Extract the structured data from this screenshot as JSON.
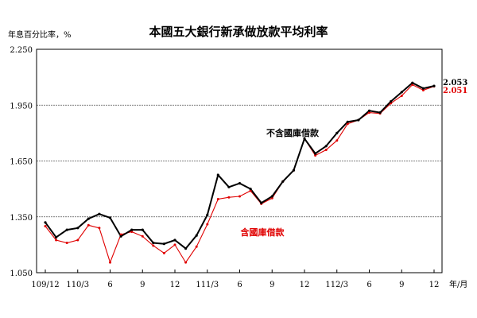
{
  "chart_data": {
    "type": "line",
    "title": "本國五大銀行新承做放款平均利率",
    "ylabel": "年息百分比率，%",
    "xlabel": "年/月",
    "ylim": [
      1.05,
      2.25
    ],
    "yticks": [
      "1.050",
      "1.350",
      "1.650",
      "1.950",
      "2.250"
    ],
    "grid": "horizontal dashed at y ticks",
    "x": [
      "109/12",
      "110/1",
      "110/2",
      "110/3",
      "110/4",
      "110/5",
      "110/6",
      "110/7",
      "110/8",
      "110/9",
      "110/10",
      "110/11",
      "110/12",
      "111/1",
      "111/2",
      "111/3",
      "111/4",
      "111/5",
      "111/6",
      "111/7",
      "111/8",
      "111/9",
      "111/10",
      "111/11",
      "111/12",
      "112/1",
      "112/2",
      "112/3",
      "112/4",
      "112/5",
      "112/6",
      "112/7",
      "112/8",
      "112/9",
      "112/10",
      "112/11",
      "112/12"
    ],
    "xtick_labels": [
      {
        "index": 0,
        "label": "109/12"
      },
      {
        "index": 3,
        "label": "110/3"
      },
      {
        "index": 6,
        "label": "6"
      },
      {
        "index": 9,
        "label": "9"
      },
      {
        "index": 12,
        "label": "12"
      },
      {
        "index": 15,
        "label": "111/3"
      },
      {
        "index": 18,
        "label": "6"
      },
      {
        "index": 21,
        "label": "9"
      },
      {
        "index": 24,
        "label": "12"
      },
      {
        "index": 27,
        "label": "112/3"
      },
      {
        "index": 30,
        "label": "6"
      },
      {
        "index": 33,
        "label": "9"
      },
      {
        "index": 36,
        "label": "12"
      }
    ],
    "series": [
      {
        "name": "不含國庫借款",
        "color": "#000000",
        "end_label": "2.053",
        "values": [
          1.32,
          1.24,
          1.28,
          1.29,
          1.34,
          1.365,
          1.345,
          1.245,
          1.28,
          1.28,
          1.21,
          1.205,
          1.225,
          1.18,
          1.25,
          1.36,
          1.575,
          1.51,
          1.53,
          1.5,
          1.425,
          1.46,
          1.54,
          1.6,
          1.77,
          1.69,
          1.73,
          1.8,
          1.86,
          1.87,
          1.92,
          1.91,
          1.97,
          2.02,
          2.07,
          2.04,
          2.053
        ]
      },
      {
        "name": "含國庫借款",
        "color": "#e00000",
        "end_label": "2.051",
        "values": [
          1.3,
          1.225,
          1.21,
          1.225,
          1.305,
          1.29,
          1.105,
          1.255,
          1.27,
          1.245,
          1.195,
          1.155,
          1.2,
          1.105,
          1.19,
          1.31,
          1.445,
          1.455,
          1.46,
          1.49,
          1.42,
          1.45,
          1.54,
          1.6,
          1.77,
          1.68,
          1.71,
          1.76,
          1.85,
          1.87,
          1.91,
          1.905,
          1.96,
          2.0,
          2.06,
          2.03,
          2.051
        ]
      }
    ]
  }
}
